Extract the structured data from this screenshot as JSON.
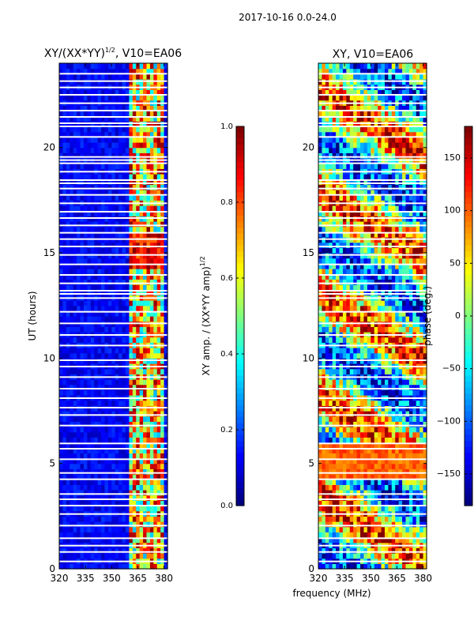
{
  "figure_title": "2017-10-16 0.0-24.0",
  "shared_xlabel": "frequency (MHz)",
  "chart_data": [
    {
      "type": "heatmap",
      "title": "XY/(XX*YY)",
      "title_sup": "1/2",
      "title_suffix": ", V10=EA06",
      "xlabel": "",
      "ylabel": "UT (hours)",
      "xlim": [
        320,
        382
      ],
      "ylim": [
        0,
        24
      ],
      "xticks": [
        320,
        335,
        350,
        365,
        380
      ],
      "yticks": [
        0,
        5,
        10,
        15,
        20
      ],
      "xtick_labels": [
        "320",
        "335",
        "350",
        "365",
        "380"
      ],
      "ytick_labels": [
        "0",
        "5",
        "10",
        "15",
        "20"
      ],
      "colormap": "jet",
      "description_of_values": "near 0 below ~360 MHz, bright stripes (0.4-1.0) between ~360 and ~380 MHz",
      "strong_band_mhz": [
        360,
        380
      ],
      "colorbar": {
        "label": "XY amp. / (XX*YY amp)",
        "label_sup": "1/2",
        "min": 0.0,
        "max": 1.0,
        "ticks": [
          0.0,
          0.2,
          0.4,
          0.6,
          0.8,
          1.0
        ],
        "tick_labels": [
          "0.0",
          "0.2",
          "0.4",
          "0.6",
          "0.8",
          "1.0"
        ]
      }
    },
    {
      "type": "heatmap",
      "title": "XY, V10=EA06",
      "xlabel": "frequency (MHz)",
      "ylabel": "",
      "xlim": [
        320,
        382
      ],
      "ylim": [
        0,
        24
      ],
      "xticks": [
        320,
        335,
        350,
        365,
        380
      ],
      "yticks": [
        0,
        5,
        10,
        15,
        20
      ],
      "xtick_labels": [
        "320",
        "335",
        "350",
        "365",
        "380"
      ],
      "ytick_labels": [
        "0",
        "5",
        "10",
        "15",
        "20"
      ],
      "colormap": "jet",
      "colorbar": {
        "label": "phase (deg.)",
        "min": -180,
        "max": 180,
        "ticks": [
          -150,
          -100,
          -50,
          0,
          50,
          100,
          150
        ],
        "tick_labels": [
          "−150",
          "−100",
          "−50",
          "0",
          "50",
          "100",
          "150"
        ]
      }
    }
  ],
  "flagged_hours": [
    0.35,
    0.8,
    1.1,
    1.45,
    2.05,
    2.6,
    3.0,
    3.3,
    3.55,
    4.25,
    4.55,
    5.2,
    5.7,
    5.95,
    6.8,
    7.3,
    7.65,
    8.1,
    8.55,
    9.1,
    9.6,
    9.9,
    10.6,
    11.1,
    11.65,
    12.2,
    12.85,
    13.05,
    13.2,
    13.55,
    13.95,
    14.45,
    14.9,
    15.3,
    15.65,
    15.95,
    16.3,
    16.65,
    16.95,
    17.35,
    17.75,
    18.05,
    18.3,
    18.45,
    18.85,
    19.25,
    19.4,
    19.55,
    20.5,
    21.0,
    21.15,
    21.45,
    21.75,
    22.1,
    22.5,
    22.85,
    23.15,
    23.5
  ]
}
